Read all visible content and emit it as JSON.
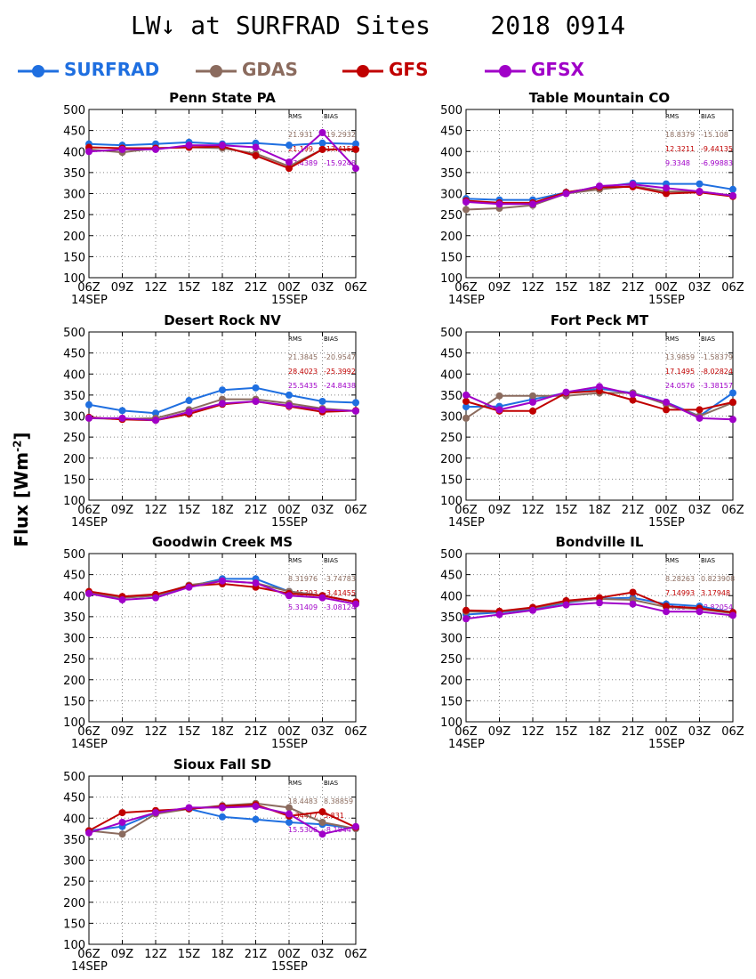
{
  "figure": {
    "title": "LW↓ at SURFRAD Sites    2018 0914",
    "ylabel_text": "Flux [Wm",
    "ylabel_sup": "-2",
    "ylabel_close": "]"
  },
  "legend": [
    {
      "name": "SURFRAD",
      "color": "#1f6fe0"
    },
    {
      "name": "GDAS",
      "color": "#8b6b5e"
    },
    {
      "name": "GFS",
      "color": "#c00000"
    },
    {
      "name": "GFSX",
      "color": "#a000c8"
    }
  ],
  "chart_data": [
    {
      "type": "line",
      "title": "Penn State PA",
      "categories": [
        "06Z",
        "09Z",
        "12Z",
        "15Z",
        "18Z",
        "21Z",
        "00Z",
        "03Z",
        "06Z"
      ],
      "date_labels": {
        "0": "14SEP",
        "6": "15SEP"
      },
      "ylim": [
        100,
        500
      ],
      "yticks": [
        100,
        150,
        200,
        250,
        300,
        350,
        400,
        450,
        500
      ],
      "grid": true,
      "stats_header": [
        "RMS",
        "BIAS"
      ],
      "stats": [
        {
          "series": "GDAS",
          "rms": "21.931",
          "bias": "-19.2932"
        },
        {
          "series": "GFS",
          "rms": "21.199",
          "bias": "-17.4155"
        },
        {
          "series": "GFSX",
          "rms": "27.4389",
          "bias": "-15.9248"
        }
      ],
      "series": [
        {
          "name": "SURFRAD",
          "values": [
            418,
            415,
            418,
            422,
            418,
            420,
            415,
            420,
            418
          ]
        },
        {
          "name": "GDAS",
          "values": [
            405,
            398,
            408,
            410,
            408,
            395,
            365,
            405,
            405
          ]
        },
        {
          "name": "GFS",
          "values": [
            410,
            408,
            408,
            410,
            412,
            390,
            360,
            405,
            405
          ]
        },
        {
          "name": "GFSX",
          "values": [
            400,
            405,
            405,
            415,
            415,
            410,
            375,
            445,
            360
          ]
        }
      ]
    },
    {
      "type": "line",
      "title": "Table Mountain CO",
      "categories": [
        "06Z",
        "09Z",
        "12Z",
        "15Z",
        "18Z",
        "21Z",
        "00Z",
        "03Z",
        "06Z"
      ],
      "date_labels": {
        "0": "14SEP",
        "6": "15SEP"
      },
      "ylim": [
        100,
        500
      ],
      "yticks": [
        100,
        150,
        200,
        250,
        300,
        350,
        400,
        450,
        500
      ],
      "grid": true,
      "stats_header": [
        "RMS",
        "BIAS"
      ],
      "stats": [
        {
          "series": "GDAS",
          "rms": "18.8379",
          "bias": "-15.108"
        },
        {
          "series": "GFS",
          "rms": "12.3211",
          "bias": "-9.44135"
        },
        {
          "series": "GFSX",
          "rms": "9.3348",
          "bias": "-6.99883"
        }
      ],
      "series": [
        {
          "name": "SURFRAD",
          "values": [
            288,
            285,
            285,
            303,
            315,
            325,
            323,
            323,
            310
          ]
        },
        {
          "name": "GDAS",
          "values": [
            262,
            265,
            272,
            300,
            310,
            318,
            305,
            305,
            295
          ]
        },
        {
          "name": "GFS",
          "values": [
            283,
            278,
            278,
            303,
            315,
            316,
            300,
            303,
            293
          ]
        },
        {
          "name": "GFSX",
          "values": [
            280,
            275,
            275,
            300,
            318,
            322,
            313,
            305,
            295
          ]
        }
      ]
    },
    {
      "type": "line",
      "title": "Desert Rock NV",
      "categories": [
        "06Z",
        "09Z",
        "12Z",
        "15Z",
        "18Z",
        "21Z",
        "00Z",
        "03Z",
        "06Z"
      ],
      "date_labels": {
        "0": "14SEP",
        "6": "15SEP"
      },
      "ylim": [
        100,
        500
      ],
      "yticks": [
        100,
        150,
        200,
        250,
        300,
        350,
        400,
        450,
        500
      ],
      "grid": true,
      "stats_header": [
        "RMS",
        "BIAS"
      ],
      "stats": [
        {
          "series": "GDAS",
          "rms": "21.3845",
          "bias": "-20.9547"
        },
        {
          "series": "GFS",
          "rms": "28.4023",
          "bias": "-25.3992"
        },
        {
          "series": "GFSX",
          "rms": "25.5435",
          "bias": "-24.8438"
        }
      ],
      "series": [
        {
          "name": "SURFRAD",
          "values": [
            327,
            313,
            307,
            337,
            362,
            367,
            350,
            335,
            332
          ]
        },
        {
          "name": "GDAS",
          "values": [
            295,
            293,
            295,
            315,
            340,
            340,
            330,
            318,
            312
          ]
        },
        {
          "name": "GFS",
          "values": [
            297,
            292,
            290,
            305,
            328,
            335,
            323,
            310,
            313
          ]
        },
        {
          "name": "GFSX",
          "values": [
            295,
            295,
            290,
            310,
            330,
            335,
            325,
            315,
            312
          ]
        }
      ]
    },
    {
      "type": "line",
      "title": "Fort Peck MT",
      "categories": [
        "06Z",
        "09Z",
        "12Z",
        "15Z",
        "18Z",
        "21Z",
        "00Z",
        "03Z",
        "06Z"
      ],
      "date_labels": {
        "0": "14SEP",
        "6": "15SEP"
      },
      "ylim": [
        100,
        500
      ],
      "yticks": [
        100,
        150,
        200,
        250,
        300,
        350,
        400,
        450,
        500
      ],
      "grid": true,
      "stats_header": [
        "RMS",
        "BIAS"
      ],
      "stats": [
        {
          "series": "GDAS",
          "rms": "13.9859",
          "bias": "-1.58379"
        },
        {
          "series": "GFS",
          "rms": "17.1495",
          "bias": "-8.02824"
        },
        {
          "series": "GFSX",
          "rms": "24.0576",
          "bias": "-3.38157"
        }
      ],
      "series": [
        {
          "name": "SURFRAD",
          "values": [
            322,
            323,
            340,
            355,
            365,
            355,
            333,
            300,
            355
          ]
        },
        {
          "name": "GDAS",
          "values": [
            295,
            348,
            348,
            348,
            355,
            355,
            328,
            300,
            332
          ]
        },
        {
          "name": "GFS",
          "values": [
            335,
            312,
            312,
            355,
            360,
            338,
            315,
            315,
            333
          ]
        },
        {
          "name": "GFSX",
          "values": [
            350,
            315,
            333,
            357,
            370,
            352,
            333,
            295,
            292
          ]
        }
      ]
    },
    {
      "type": "line",
      "title": "Goodwin Creek MS",
      "categories": [
        "06Z",
        "09Z",
        "12Z",
        "15Z",
        "18Z",
        "21Z",
        "00Z",
        "03Z",
        "06Z"
      ],
      "date_labels": {
        "0": "14SEP",
        "6": "15SEP"
      },
      "ylim": [
        100,
        500
      ],
      "yticks": [
        100,
        150,
        200,
        250,
        300,
        350,
        400,
        450,
        500
      ],
      "grid": true,
      "stats_header": [
        "RMS",
        "BIAS"
      ],
      "stats": [
        {
          "series": "GDAS",
          "rms": "8.31976",
          "bias": "-3.74783"
        },
        {
          "series": "GFS",
          "rms": "4.45393",
          "bias": "-3.41455"
        },
        {
          "series": "GFSX",
          "rms": "5.31409",
          "bias": "-3.08124"
        }
      ],
      "series": [
        {
          "name": "SURFRAD",
          "values": [
            405,
            395,
            400,
            422,
            440,
            440,
            410,
            400,
            385
          ]
        },
        {
          "name": "GDAS",
          "values": [
            408,
            395,
            400,
            425,
            435,
            430,
            410,
            400,
            385
          ]
        },
        {
          "name": "GFS",
          "values": [
            410,
            398,
            403,
            423,
            428,
            420,
            405,
            400,
            385
          ]
        },
        {
          "name": "GFSX",
          "values": [
            405,
            390,
            395,
            420,
            435,
            430,
            400,
            395,
            380
          ]
        }
      ]
    },
    {
      "type": "line",
      "title": "Bondville IL",
      "categories": [
        "06Z",
        "09Z",
        "12Z",
        "15Z",
        "18Z",
        "21Z",
        "00Z",
        "03Z",
        "06Z"
      ],
      "date_labels": {
        "0": "14SEP",
        "6": "15SEP"
      },
      "ylim": [
        100,
        500
      ],
      "yticks": [
        100,
        150,
        200,
        250,
        300,
        350,
        400,
        450,
        500
      ],
      "grid": true,
      "stats_header": [
        "RMS",
        "BIAS"
      ],
      "stats": [
        {
          "series": "GDAS",
          "rms": "8.28263",
          "bias": "0.823908"
        },
        {
          "series": "GFS",
          "rms": "7.14993",
          "bias": "3.17948"
        },
        {
          "series": "GFSX",
          "rms": "14.38",
          "bias": "-8.82054"
        }
      ],
      "series": [
        {
          "name": "SURFRAD",
          "values": [
            355,
            360,
            368,
            383,
            393,
            395,
            380,
            375,
            360
          ]
        },
        {
          "name": "GDAS",
          "values": [
            362,
            362,
            370,
            385,
            392,
            390,
            373,
            368,
            358
          ]
        },
        {
          "name": "GFS",
          "values": [
            365,
            363,
            372,
            388,
            395,
            408,
            375,
            370,
            360
          ]
        },
        {
          "name": "GFSX",
          "values": [
            345,
            355,
            365,
            378,
            383,
            380,
            362,
            362,
            353
          ]
        }
      ]
    },
    {
      "type": "line",
      "title": "Sioux Fall SD",
      "categories": [
        "06Z",
        "09Z",
        "12Z",
        "15Z",
        "18Z",
        "21Z",
        "00Z",
        "03Z",
        "06Z"
      ],
      "date_labels": {
        "0": "14SEP",
        "6": "15SEP"
      },
      "ylim": [
        100,
        500
      ],
      "yticks": [
        100,
        150,
        200,
        250,
        300,
        350,
        400,
        450,
        500
      ],
      "grid": true,
      "stats_header": [
        "RMS",
        "BIAS"
      ],
      "stats": [
        {
          "series": "GDAS",
          "rms": "18.4483",
          "bias": "8.38859"
        },
        {
          "series": "GFS",
          "rms": "9.34417",
          "bias": "5.831"
        },
        {
          "series": "GFSX",
          "rms": "15.5306",
          "bias": "-8.1844"
        }
      ],
      "series": [
        {
          "name": "SURFRAD",
          "values": [
            370,
            380,
            413,
            422,
            403,
            397,
            390,
            385,
            375
          ]
        },
        {
          "name": "GDAS",
          "values": [
            370,
            362,
            410,
            422,
            430,
            435,
            425,
            390,
            375
          ]
        },
        {
          "name": "GFS",
          "values": [
            370,
            413,
            418,
            422,
            428,
            432,
            405,
            415,
            378
          ]
        },
        {
          "name": "GFSX",
          "values": [
            365,
            390,
            413,
            425,
            425,
            428,
            410,
            362,
            380
          ]
        }
      ]
    }
  ]
}
